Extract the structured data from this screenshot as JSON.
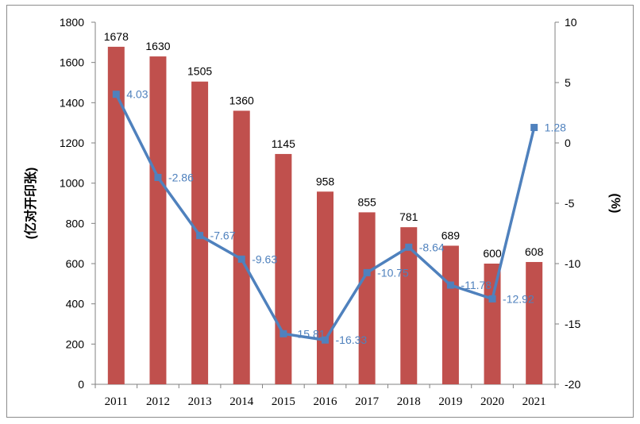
{
  "chart_data": {
    "type": "bar",
    "categories": [
      "2011",
      "2012",
      "2013",
      "2014",
      "2015",
      "2016",
      "2017",
      "2018",
      "2019",
      "2020",
      "2021"
    ],
    "series": [
      {
        "type": "bar",
        "axis": "left",
        "color": "#c0504d",
        "values": [
          1678,
          1630,
          1505,
          1360,
          1145,
          958,
          855,
          781,
          689,
          600,
          608
        ]
      },
      {
        "type": "line",
        "axis": "right",
        "color": "#4f81bd",
        "values": [
          4.03,
          -2.86,
          -7.67,
          -9.63,
          -15.81,
          -16.33,
          -10.75,
          -8.64,
          -11.78,
          -12.92,
          1.28
        ],
        "labels": [
          "4.03",
          "-2.86",
          "-7.67",
          "-9.63",
          "-15.81",
          "-16.33",
          "-10.75",
          "-8.64",
          "-11.78",
          "-12.92",
          "1.28"
        ]
      }
    ],
    "ylabel_left": "(亿对开印张)",
    "ylabel_right": "(%)",
    "ylim_left": [
      0,
      1800
    ],
    "ylim_right": [
      -20,
      10
    ],
    "yticks_left": [
      "0",
      "200",
      "400",
      "600",
      "800",
      "1000",
      "1200",
      "1400",
      "1600",
      "1800"
    ],
    "yticks_right": [
      "10",
      "5",
      "0",
      "-5",
      "-10",
      "-15",
      "-20"
    ],
    "legend": "none",
    "grid": false
  }
}
